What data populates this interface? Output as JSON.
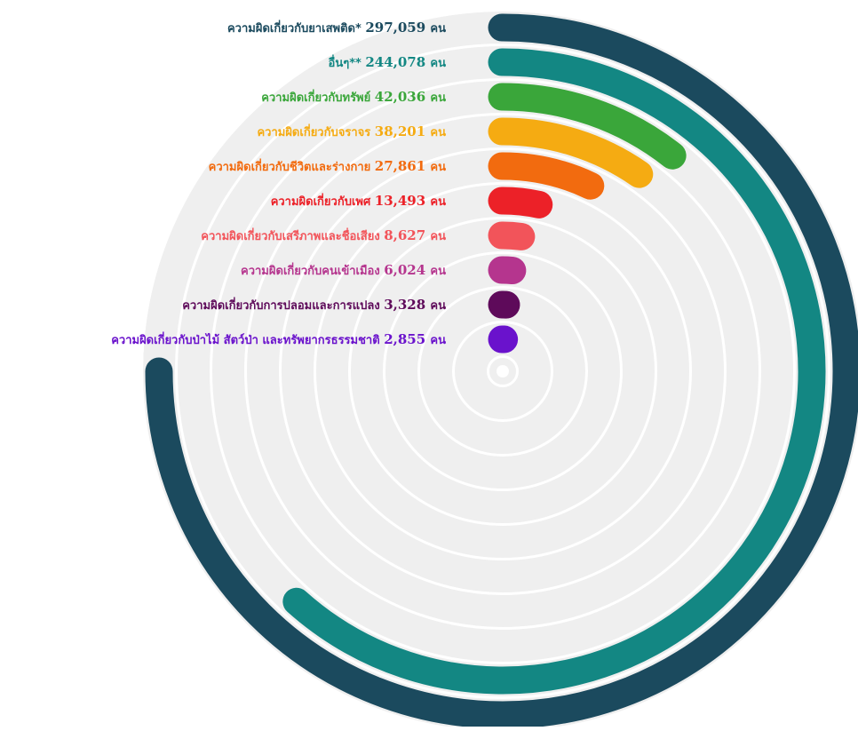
{
  "chart_data": {
    "type": "radial-bar",
    "unit": "คน",
    "max_value": 297059,
    "series": [
      {
        "category": "ความผิดเกี่ยวกับยาเสพติด*",
        "value": 297059,
        "value_label": "297,059",
        "color": "#1b4a5e"
      },
      {
        "category": "อื่นๆ**",
        "value": 244078,
        "value_label": "244,078",
        "color": "#138783"
      },
      {
        "category": "ความผิดเกี่ยวกับทรัพย์",
        "value": 42036,
        "value_label": "42,036",
        "color": "#3aa63a"
      },
      {
        "category": "ความผิดเกี่ยวกับจราจร",
        "value": 38201,
        "value_label": "38,201",
        "color": "#f5ab12"
      },
      {
        "category": "ความผิดเกี่ยวกับชีวิตและร่างกาย",
        "value": 27861,
        "value_label": "27,861",
        "color": "#f26b0f"
      },
      {
        "category": "ความผิดเกี่ยวกับเพศ",
        "value": 13493,
        "value_label": "13,493",
        "color": "#ec2128"
      },
      {
        "category": "ความผิดเกี่ยวกับเสรีภาพและชื่อเสียง",
        "value": 8627,
        "value_label": "8,627",
        "color": "#f2545a"
      },
      {
        "category": "ความผิดเกี่ยวกับคนเข้าเมือง",
        "value": 6024,
        "value_label": "6,024",
        "color": "#b5358e"
      },
      {
        "category": "ความผิดเกี่ยวกับการปลอมและการแปลง",
        "value": 3328,
        "value_label": "3,328",
        "color": "#5e0a5a"
      },
      {
        "category": "ความผิดเกี่ยวกับป่าไม้ สัตว์ป่า และทรัพยากรธรรมชาติ",
        "value": 2855,
        "value_label": "2,855",
        "color": "#6a12cc"
      }
    ],
    "track_color": "#efefef",
    "ring_divider_color": "#ffffff"
  }
}
